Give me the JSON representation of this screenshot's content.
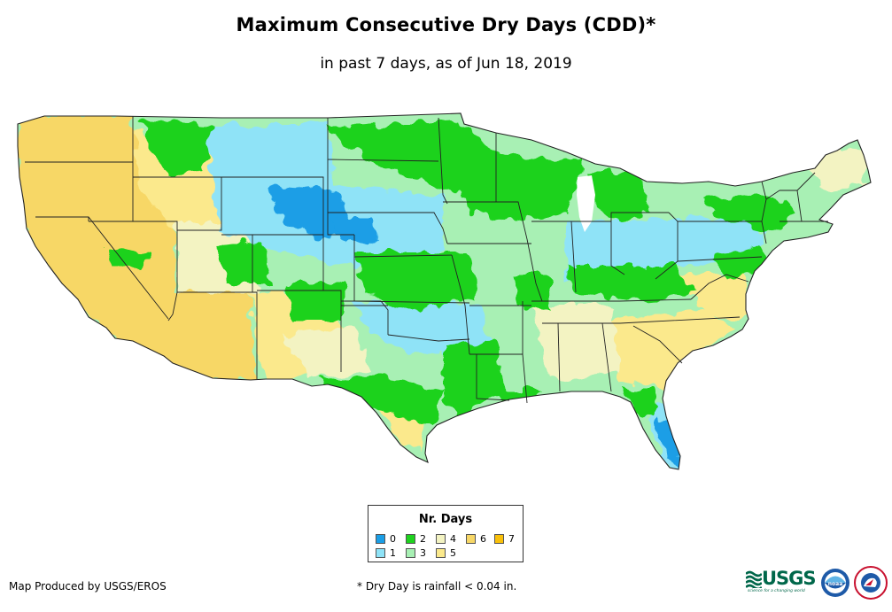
{
  "title": "Maximum Consecutive Dry Days (CDD)*",
  "subtitle": "in past 7 days, as of Jun 18, 2019",
  "legend": {
    "title": "Nr. Days",
    "items": [
      {
        "label": "0",
        "color": "#1a9ee6"
      },
      {
        "label": "1",
        "color": "#8fe3f7"
      },
      {
        "label": "2",
        "color": "#1ed21e"
      },
      {
        "label": "3",
        "color": "#a8f0b4"
      },
      {
        "label": "4",
        "color": "#f3f3c2"
      },
      {
        "label": "5",
        "color": "#fbe98c"
      },
      {
        "label": "6",
        "color": "#f7d766"
      },
      {
        "label": "7",
        "color": "#f9c00a"
      }
    ]
  },
  "credit": "Map Produced by USGS/EROS",
  "footnote": "* Dry Day is rainfall < 0.04 in.",
  "logos": {
    "usgs_text": "USGS",
    "usgs_tagline": "science for a changing world",
    "noaa_text": "noaa"
  }
}
